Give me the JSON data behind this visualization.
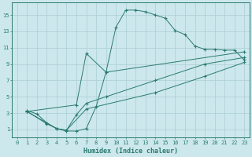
{
  "xlabel": "Humidex (Indice chaleur)",
  "bg_color": "#cce8ec",
  "line_color": "#2a7a6f",
  "grid_color": "#aacdd4",
  "xlim": [
    -0.5,
    23.5
  ],
  "ylim": [
    0,
    16.5
  ],
  "xticks": [
    0,
    1,
    2,
    3,
    4,
    5,
    6,
    7,
    8,
    9,
    10,
    11,
    12,
    13,
    14,
    15,
    16,
    17,
    18,
    19,
    20,
    21,
    22,
    23
  ],
  "yticks": [
    1,
    3,
    5,
    7,
    9,
    11,
    13,
    15
  ],
  "line1_x": [
    1,
    2,
    3,
    4,
    5,
    6,
    7,
    8,
    9,
    10,
    11,
    12,
    13,
    14,
    15,
    16,
    17,
    18,
    19,
    20,
    21,
    22,
    23
  ],
  "line1_y": [
    3.3,
    2.9,
    1.8,
    1.1,
    0.8,
    0.8,
    1.1,
    3.8,
    8.0,
    13.5,
    15.6,
    15.6,
    15.4,
    15.0,
    14.6,
    13.1,
    12.6,
    11.2,
    10.8,
    10.8,
    10.7,
    10.7,
    9.5
  ],
  "line2_x": [
    1,
    6,
    7,
    9,
    23
  ],
  "line2_y": [
    3.2,
    4.0,
    10.3,
    8.0,
    10.5
  ],
  "line3_x": [
    1,
    3,
    4,
    5,
    6,
    7,
    9,
    14,
    19,
    23
  ],
  "line3_y": [
    3.2,
    1.7,
    1.1,
    0.9,
    2.8,
    4.2,
    5.0,
    7.0,
    9.0,
    9.8
  ],
  "line4_x": [
    1,
    3,
    4,
    5,
    7,
    14,
    19,
    23
  ],
  "line4_y": [
    3.2,
    1.8,
    1.1,
    0.9,
    3.5,
    5.5,
    7.5,
    9.2
  ],
  "tick_fontsize": 5,
  "axis_fontsize": 6
}
